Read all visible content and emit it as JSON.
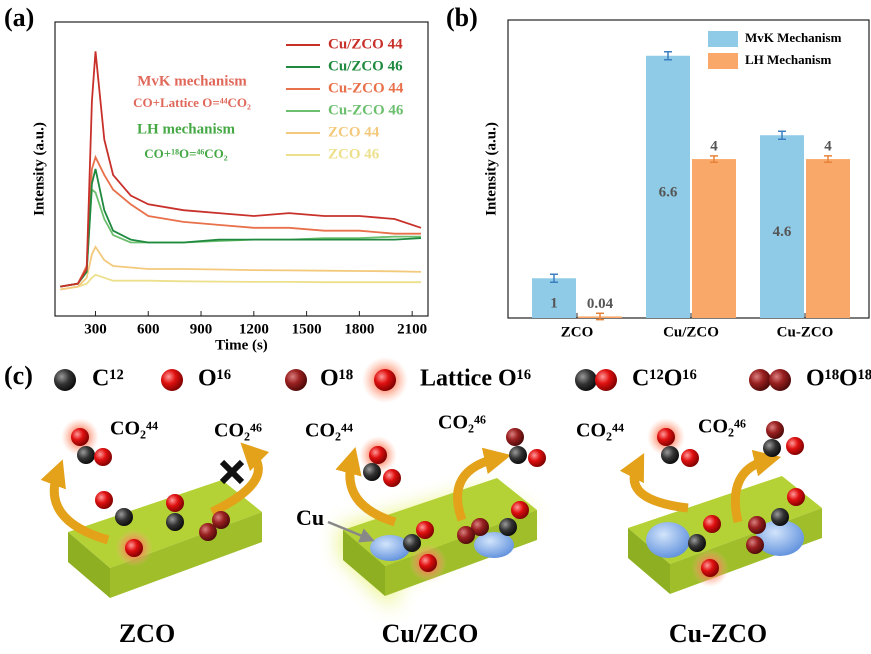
{
  "panel_labels": [
    "(a)",
    "(b)",
    "(c)"
  ],
  "chart_data": [
    {
      "type": "line",
      "xlabel": "Time (s)",
      "ylabel": "Intensity (a.u.)",
      "x": [
        100,
        200,
        250,
        280,
        300,
        350,
        400,
        500,
        600,
        800,
        1000,
        1200,
        1400,
        1600,
        1800,
        2000,
        2150
      ],
      "xlim": [
        70,
        2190
      ],
      "xticks": [
        300,
        600,
        900,
        1200,
        1500,
        1800,
        2100
      ],
      "ylim": [
        0,
        100
      ],
      "series": [
        {
          "name": "Cu/ZCO 44",
          "color": "#c8302a",
          "values": [
            10,
            11,
            16,
            73,
            90,
            60,
            48,
            41,
            38,
            36,
            35,
            34,
            35,
            34,
            34,
            33,
            30
          ]
        },
        {
          "name": "Cu/ZCO 46",
          "color": "#1f8a3f",
          "values": [
            10,
            11,
            15,
            45,
            50,
            36,
            29,
            26,
            25,
            25,
            26,
            26,
            26,
            26,
            26,
            26,
            26.5
          ]
        },
        {
          "name": "Cu-ZCO 44",
          "color": "#e8704a",
          "values": [
            10,
            11,
            17,
            50,
            54,
            48,
            43,
            38,
            34,
            32,
            31,
            30,
            30,
            29,
            29,
            28,
            28
          ]
        },
        {
          "name": "Cu-ZCO 46",
          "color": "#6cbf6e",
          "values": [
            10,
            11,
            16,
            43,
            42,
            33,
            27.5,
            25,
            25,
            25,
            25.5,
            26,
            26,
            26.5,
            26.5,
            27,
            27
          ]
        },
        {
          "name": "ZCO 44",
          "color": "#f3c97c",
          "values": [
            9,
            10,
            13,
            21,
            23.5,
            19,
            17,
            16.5,
            16,
            16,
            15.8,
            15.6,
            15.5,
            15.4,
            15.3,
            15.2,
            15
          ]
        },
        {
          "name": "ZCO 46",
          "color": "#ece08c",
          "values": [
            9,
            10,
            11,
            13,
            14,
            13,
            12,
            12,
            12,
            11.8,
            11.7,
            11.6,
            11.6,
            11.5,
            11.5,
            11.5,
            11.5
          ]
        }
      ],
      "annotations": [
        {
          "text": "MvK mechanism",
          "color": "#e0685a"
        },
        {
          "text": "CO+Lattice O=⁴⁴CO₂",
          "color": "#e0685a"
        },
        {
          "text": "LH mechanism",
          "color": "#45a845"
        },
        {
          "text": "CO+¹⁸O=⁴⁶CO₂",
          "color": "#45a845"
        }
      ]
    },
    {
      "type": "bar",
      "ylabel": "Intensity (a.u.)",
      "categories": [
        "ZCO",
        "Cu/ZCO",
        "Cu-ZCO"
      ],
      "ylim": [
        0,
        7.5
      ],
      "series": [
        {
          "name": "MvK Mechanism",
          "color": "#8fcbe6",
          "error_color": "#3b7fc0",
          "values": [
            1,
            6.6,
            4.6
          ],
          "errors": [
            0.1,
            0.1,
            0.1
          ]
        },
        {
          "name": "LH Mechanism",
          "color": "#f9a86a",
          "error_color": "#e8843a",
          "values": [
            0.04,
            4,
            4
          ],
          "errors": [
            0.08,
            0.08,
            0.08
          ]
        }
      ]
    }
  ],
  "diagram": {
    "legend": [
      "C¹²",
      "O¹⁶",
      "O¹⁸",
      "Lattice O¹⁶",
      "C¹²O¹⁶",
      "O¹⁸O¹⁸"
    ],
    "panels": [
      {
        "caption": "ZCO",
        "labels": [
          "CO₂⁴⁴",
          "CO₂⁴⁶"
        ]
      },
      {
        "caption": "Cu/ZCO",
        "labels": [
          "CO₂⁴⁴",
          "CO₂⁴⁶",
          "Cu"
        ]
      },
      {
        "caption": "Cu-ZCO",
        "labels": [
          "CO₂⁴⁴",
          "CO₂⁴⁶"
        ]
      }
    ]
  }
}
